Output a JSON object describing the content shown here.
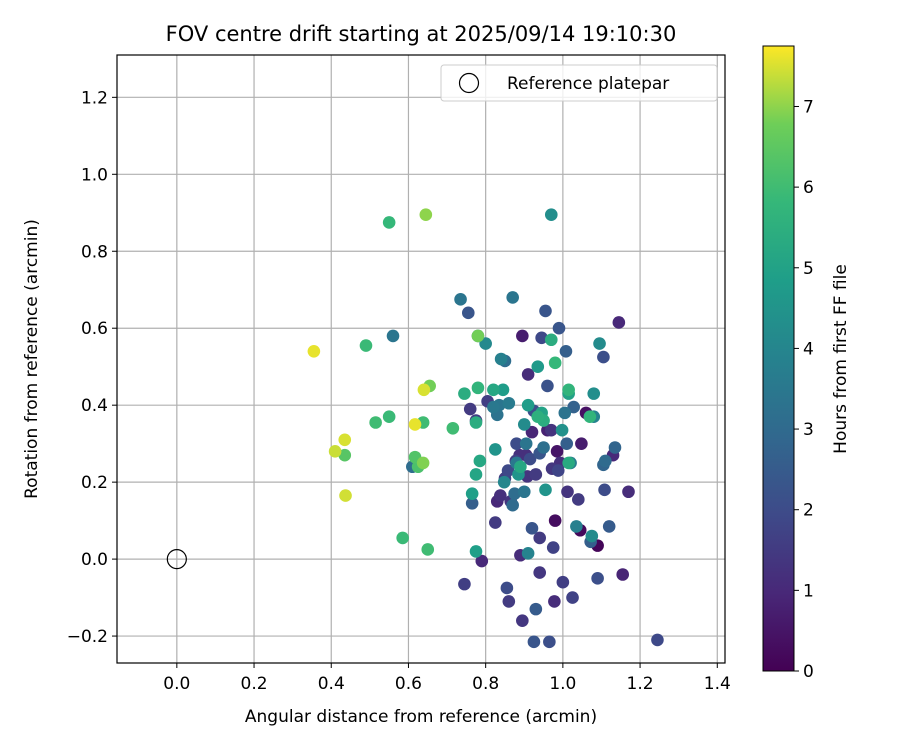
{
  "chart_data": {
    "type": "scatter",
    "title": "FOV centre drift starting at 2025/09/14 19:10:30",
    "xlabel": "Angular distance from reference (arcmin)",
    "ylabel": "Rotation from reference (arcmin)",
    "xlim": [
      -0.155,
      1.42
    ],
    "ylim": [
      -0.27,
      1.31
    ],
    "xticks": [
      0.0,
      0.2,
      0.4,
      0.6,
      0.8,
      1.0,
      1.2,
      1.4
    ],
    "yticks": [
      -0.2,
      0.0,
      0.2,
      0.4,
      0.6,
      0.8,
      1.0,
      1.2
    ],
    "xtick_labels": [
      "0.0",
      "0.2",
      "0.4",
      "0.6",
      "0.8",
      "1.0",
      "1.2",
      "1.4"
    ],
    "ytick_labels": [
      "−0.2",
      "0.0",
      "0.2",
      "0.4",
      "0.6",
      "0.8",
      "1.0",
      "1.2"
    ],
    "grid": true,
    "colormap": "viridis",
    "colorbar": {
      "label": "Hours from first FF file",
      "range": [
        0,
        7.75
      ],
      "ticks": [
        0,
        1,
        2,
        3,
        4,
        5,
        6,
        7
      ],
      "tick_labels": [
        "0",
        "1",
        "2",
        "3",
        "4",
        "5",
        "6",
        "7"
      ]
    },
    "legend": {
      "position": "top-right",
      "entries": [
        {
          "label": "Reference platepar",
          "marker": "open-circle"
        }
      ]
    },
    "reference_point": {
      "x": 0.0,
      "y": 0.0
    },
    "points": [
      {
        "x": 0.355,
        "y": 0.54,
        "t": 7.6
      },
      {
        "x": 0.41,
        "y": 0.28,
        "t": 7.4
      },
      {
        "x": 0.435,
        "y": 0.31,
        "t": 7.5
      },
      {
        "x": 0.437,
        "y": 0.165,
        "t": 7.45
      },
      {
        "x": 0.435,
        "y": 0.27,
        "t": 6.4
      },
      {
        "x": 0.49,
        "y": 0.555,
        "t": 5.9
      },
      {
        "x": 0.515,
        "y": 0.355,
        "t": 6.0
      },
      {
        "x": 0.55,
        "y": 0.875,
        "t": 5.8
      },
      {
        "x": 0.55,
        "y": 0.37,
        "t": 5.9
      },
      {
        "x": 0.56,
        "y": 0.58,
        "t": 3.4
      },
      {
        "x": 0.585,
        "y": 0.055,
        "t": 5.9
      },
      {
        "x": 0.61,
        "y": 0.24,
        "t": 3.1
      },
      {
        "x": 0.617,
        "y": 0.265,
        "t": 6.3
      },
      {
        "x": 0.617,
        "y": 0.35,
        "t": 7.6
      },
      {
        "x": 0.625,
        "y": 0.24,
        "t": 6.2
      },
      {
        "x": 0.638,
        "y": 0.25,
        "t": 6.9
      },
      {
        "x": 0.638,
        "y": 0.355,
        "t": 6.0
      },
      {
        "x": 0.645,
        "y": 0.895,
        "t": 7.0
      },
      {
        "x": 0.64,
        "y": 0.44,
        "t": 7.5
      },
      {
        "x": 0.655,
        "y": 0.45,
        "t": 6.8
      },
      {
        "x": 0.65,
        "y": 0.025,
        "t": 6.0
      },
      {
        "x": 0.715,
        "y": 0.34,
        "t": 6.0
      },
      {
        "x": 0.735,
        "y": 0.675,
        "t": 3.4
      },
      {
        "x": 0.745,
        "y": 0.43,
        "t": 5.4
      },
      {
        "x": 0.745,
        "y": -0.065,
        "t": 1.6
      },
      {
        "x": 0.755,
        "y": 0.64,
        "t": 2.3
      },
      {
        "x": 0.76,
        "y": 0.39,
        "t": 1.5
      },
      {
        "x": 0.765,
        "y": 0.17,
        "t": 4.9
      },
      {
        "x": 0.765,
        "y": 0.145,
        "t": 2.6
      },
      {
        "x": 0.775,
        "y": 0.36,
        "t": 1.6
      },
      {
        "x": 0.775,
        "y": 0.22,
        "t": 5.1
      },
      {
        "x": 0.775,
        "y": 0.355,
        "t": 5.4
      },
      {
        "x": 0.775,
        "y": 0.02,
        "t": 4.9
      },
      {
        "x": 0.78,
        "y": 0.445,
        "t": 5.7
      },
      {
        "x": 0.78,
        "y": 0.58,
        "t": 3.2
      },
      {
        "x": 0.78,
        "y": 0.58,
        "t": 6.8
      },
      {
        "x": 0.785,
        "y": 0.255,
        "t": 5.2
      },
      {
        "x": 0.79,
        "y": -0.005,
        "t": 1.0
      },
      {
        "x": 0.8,
        "y": 0.56,
        "t": 4.1
      },
      {
        "x": 0.805,
        "y": 0.41,
        "t": 1.6
      },
      {
        "x": 0.82,
        "y": 0.44,
        "t": 5.2
      },
      {
        "x": 0.82,
        "y": 0.395,
        "t": 3.5
      },
      {
        "x": 0.825,
        "y": 0.095,
        "t": 1.5
      },
      {
        "x": 0.825,
        "y": 0.285,
        "t": 4.5
      },
      {
        "x": 0.83,
        "y": 0.15,
        "t": 1.0
      },
      {
        "x": 0.83,
        "y": 0.375,
        "t": 3.3
      },
      {
        "x": 0.835,
        "y": 0.4,
        "t": 3.4
      },
      {
        "x": 0.838,
        "y": 0.165,
        "t": 1.2
      },
      {
        "x": 0.84,
        "y": 0.52,
        "t": 3.8
      },
      {
        "x": 0.845,
        "y": 0.44,
        "t": 4.8
      },
      {
        "x": 0.848,
        "y": 0.2,
        "t": 4.0
      },
      {
        "x": 0.85,
        "y": 0.21,
        "t": 1.6
      },
      {
        "x": 0.85,
        "y": 0.515,
        "t": 3.1
      },
      {
        "x": 0.855,
        "y": -0.075,
        "t": 2.0
      },
      {
        "x": 0.858,
        "y": 0.23,
        "t": 1.9
      },
      {
        "x": 0.86,
        "y": 0.405,
        "t": 3.6
      },
      {
        "x": 0.86,
        "y": -0.11,
        "t": 1.5
      },
      {
        "x": 0.865,
        "y": 0.15,
        "t": 1.3
      },
      {
        "x": 0.87,
        "y": 0.68,
        "t": 3.4
      },
      {
        "x": 0.87,
        "y": 0.14,
        "t": 3.0
      },
      {
        "x": 0.875,
        "y": 0.17,
        "t": 3.1
      },
      {
        "x": 0.878,
        "y": 0.255,
        "t": 1.6
      },
      {
        "x": 0.88,
        "y": 0.25,
        "t": 3.5
      },
      {
        "x": 0.88,
        "y": 0.3,
        "t": 2.0
      },
      {
        "x": 0.885,
        "y": 0.22,
        "t": 4.5
      },
      {
        "x": 0.888,
        "y": 0.27,
        "t": 1.2
      },
      {
        "x": 0.89,
        "y": 0.24,
        "t": 5.2
      },
      {
        "x": 0.89,
        "y": 0.01,
        "t": 1.1
      },
      {
        "x": 0.895,
        "y": -0.16,
        "t": 1.4
      },
      {
        "x": 0.895,
        "y": 0.58,
        "t": 0.7
      },
      {
        "x": 0.9,
        "y": 0.175,
        "t": 3.4
      },
      {
        "x": 0.9,
        "y": 0.35,
        "t": 4.2
      },
      {
        "x": 0.905,
        "y": 0.3,
        "t": 3.4
      },
      {
        "x": 0.905,
        "y": 0.27,
        "t": 1.2
      },
      {
        "x": 0.908,
        "y": 0.215,
        "t": 1.3
      },
      {
        "x": 0.91,
        "y": 0.48,
        "t": 1.1
      },
      {
        "x": 0.91,
        "y": 0.4,
        "t": 4.8
      },
      {
        "x": 0.91,
        "y": 0.015,
        "t": 3.9
      },
      {
        "x": 0.915,
        "y": 0.26,
        "t": 2.0
      },
      {
        "x": 0.92,
        "y": 0.08,
        "t": 2.3
      },
      {
        "x": 0.92,
        "y": 0.33,
        "t": 0.9
      },
      {
        "x": 0.925,
        "y": 0.385,
        "t": 2.1
      },
      {
        "x": 0.925,
        "y": -0.215,
        "t": 2.3
      },
      {
        "x": 0.93,
        "y": 0.22,
        "t": 1.5
      },
      {
        "x": 0.93,
        "y": -0.13,
        "t": 2.5
      },
      {
        "x": 0.935,
        "y": 0.37,
        "t": 5.5
      },
      {
        "x": 0.935,
        "y": 0.5,
        "t": 4.7
      },
      {
        "x": 0.94,
        "y": 0.275,
        "t": 2.3
      },
      {
        "x": 0.94,
        "y": 0.055,
        "t": 1.5
      },
      {
        "x": 0.94,
        "y": -0.035,
        "t": 1.4
      },
      {
        "x": 0.945,
        "y": 0.575,
        "t": 1.9
      },
      {
        "x": 0.945,
        "y": 0.38,
        "t": 5.0
      },
      {
        "x": 0.95,
        "y": 0.29,
        "t": 3.2
      },
      {
        "x": 0.95,
        "y": 0.36,
        "t": 5.4
      },
      {
        "x": 0.955,
        "y": 0.645,
        "t": 2.3
      },
      {
        "x": 0.955,
        "y": 0.18,
        "t": 4.5
      },
      {
        "x": 0.96,
        "y": 0.45,
        "t": 2.2
      },
      {
        "x": 0.96,
        "y": 0.335,
        "t": 0.8
      },
      {
        "x": 0.965,
        "y": -0.215,
        "t": 2.1
      },
      {
        "x": 0.97,
        "y": 0.895,
        "t": 4.3
      },
      {
        "x": 0.97,
        "y": 0.57,
        "t": 5.4
      },
      {
        "x": 0.97,
        "y": 0.335,
        "t": 1.3
      },
      {
        "x": 0.972,
        "y": 0.235,
        "t": 1.4
      },
      {
        "x": 0.975,
        "y": 0.03,
        "t": 1.7
      },
      {
        "x": 0.978,
        "y": -0.11,
        "t": 1.1
      },
      {
        "x": 0.98,
        "y": 0.1,
        "t": 0.3
      },
      {
        "x": 0.98,
        "y": 0.51,
        "t": 5.8
      },
      {
        "x": 0.985,
        "y": 0.28,
        "t": 0.5
      },
      {
        "x": 0.988,
        "y": 0.23,
        "t": 1.8
      },
      {
        "x": 0.99,
        "y": 0.6,
        "t": 2.3
      },
      {
        "x": 0.993,
        "y": 0.25,
        "t": 1.2
      },
      {
        "x": 0.998,
        "y": 0.335,
        "t": 4.4
      },
      {
        "x": 1.0,
        "y": -0.06,
        "t": 1.6
      },
      {
        "x": 1.005,
        "y": 0.38,
        "t": 3.3
      },
      {
        "x": 1.008,
        "y": 0.54,
        "t": 2.6
      },
      {
        "x": 1.01,
        "y": 0.3,
        "t": 2.6
      },
      {
        "x": 1.012,
        "y": 0.175,
        "t": 1.3
      },
      {
        "x": 1.015,
        "y": 0.43,
        "t": 5.0
      },
      {
        "x": 1.015,
        "y": 0.44,
        "t": 5.7
      },
      {
        "x": 1.015,
        "y": 0.25,
        "t": 5.3
      },
      {
        "x": 1.02,
        "y": 0.25,
        "t": 3.7
      },
      {
        "x": 1.025,
        "y": -0.1,
        "t": 1.7
      },
      {
        "x": 1.028,
        "y": 0.395,
        "t": 2.7
      },
      {
        "x": 1.035,
        "y": 0.085,
        "t": 3.8
      },
      {
        "x": 1.04,
        "y": 0.155,
        "t": 1.5
      },
      {
        "x": 1.045,
        "y": 0.075,
        "t": 0.2
      },
      {
        "x": 1.048,
        "y": 0.3,
        "t": 0.7
      },
      {
        "x": 1.06,
        "y": 0.38,
        "t": 0.4
      },
      {
        "x": 1.07,
        "y": 0.37,
        "t": 5.7
      },
      {
        "x": 1.072,
        "y": 0.045,
        "t": 2.6
      },
      {
        "x": 1.075,
        "y": 0.06,
        "t": 4.2
      },
      {
        "x": 1.08,
        "y": 0.37,
        "t": 3.9
      },
      {
        "x": 1.08,
        "y": 0.43,
        "t": 4.3
      },
      {
        "x": 1.09,
        "y": 0.035,
        "t": 0.1
      },
      {
        "x": 1.09,
        "y": -0.05,
        "t": 2.1
      },
      {
        "x": 1.095,
        "y": 0.56,
        "t": 4.2
      },
      {
        "x": 1.105,
        "y": 0.525,
        "t": 2.1
      },
      {
        "x": 1.105,
        "y": 0.245,
        "t": 2.8
      },
      {
        "x": 1.108,
        "y": 0.18,
        "t": 2.0
      },
      {
        "x": 1.11,
        "y": 0.255,
        "t": 3.0
      },
      {
        "x": 1.12,
        "y": 0.085,
        "t": 2.5
      },
      {
        "x": 1.13,
        "y": 0.27,
        "t": 1.0
      },
      {
        "x": 1.135,
        "y": 0.29,
        "t": 2.8
      },
      {
        "x": 1.145,
        "y": 0.615,
        "t": 1.0
      },
      {
        "x": 1.155,
        "y": -0.04,
        "t": 0.9
      },
      {
        "x": 1.17,
        "y": 0.175,
        "t": 1.1
      },
      {
        "x": 1.245,
        "y": -0.21,
        "t": 1.9
      }
    ]
  },
  "colors": {
    "axis": "#000000",
    "grid": "#b0b0b0",
    "legend_border": "#cccccc",
    "background": "#ffffff"
  }
}
